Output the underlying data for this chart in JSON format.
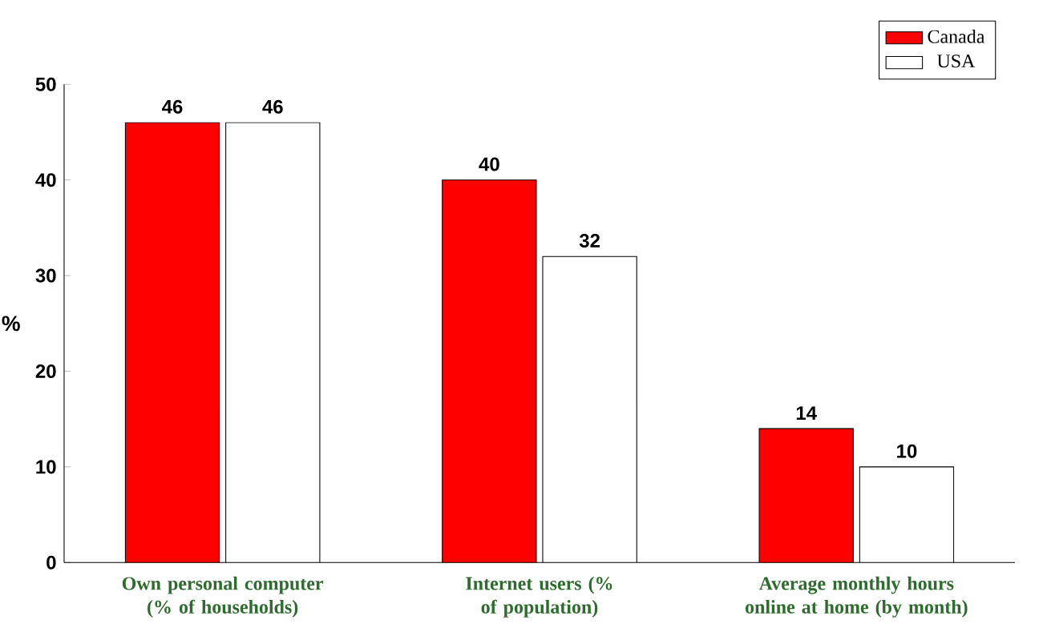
{
  "chart_data": {
    "type": "bar",
    "ylabel": "%",
    "categories": [
      "Own personal computer (% of households)",
      "Internet users (% of population)",
      "Average monthly hours online at home (by month)"
    ],
    "series": [
      {
        "name": "Canada",
        "color": "#ff0000",
        "values": [
          46,
          40,
          14
        ]
      },
      {
        "name": "USA",
        "color": "#ffffff",
        "values": [
          46,
          32,
          10
        ]
      }
    ],
    "ylim": [
      0,
      50
    ],
    "yticks": [
      0,
      10,
      20,
      30,
      40,
      50
    ],
    "data_labels": true,
    "legend": "top right",
    "grid": false
  }
}
